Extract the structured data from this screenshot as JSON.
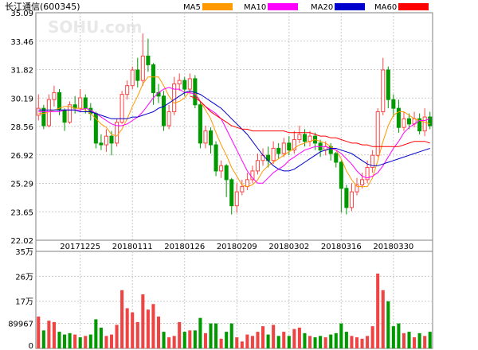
{
  "title": "长江通信(600345)",
  "watermark": "SOHU.com",
  "legend": [
    {
      "label": "MA5",
      "color": "#ff9900"
    },
    {
      "label": "MA10",
      "color": "#ff00ff"
    },
    {
      "label": "MA20",
      "color": "#0000cc"
    },
    {
      "label": "MA60",
      "color": "#ff0000"
    }
  ],
  "colors": {
    "up": "#ff4444",
    "down": "#009900",
    "volume_up": "#ee4444",
    "volume_down": "#009900"
  },
  "chart_data": [
    {
      "type": "candlestick",
      "ylim": [
        22.02,
        35.09
      ],
      "y_ticks": [
        "35.09",
        "33.46",
        "31.82",
        "30.19",
        "28.56",
        "26.92",
        "25.29",
        "23.65",
        "22.02"
      ],
      "x_tick_labels": [
        {
          "index": 8,
          "label": "20171225"
        },
        {
          "index": 18,
          "label": "20180111"
        },
        {
          "index": 28,
          "label": "20180126"
        },
        {
          "index": 38,
          "label": "20180209"
        },
        {
          "index": 48,
          "label": "20180302"
        },
        {
          "index": 58,
          "label": "20180316"
        },
        {
          "index": 68,
          "label": "20180330"
        }
      ],
      "grid": true,
      "candles": [
        [
          29.2,
          29.6,
          30.4,
          28.9
        ],
        [
          29.6,
          28.6,
          29.8,
          28.4
        ],
        [
          28.6,
          30.1,
          30.4,
          28.5
        ],
        [
          30.1,
          30.5,
          30.9,
          29.7
        ],
        [
          30.5,
          29.5,
          30.7,
          29.2
        ],
        [
          29.5,
          28.8,
          29.6,
          28.3
        ],
        [
          28.8,
          29.8,
          30.0,
          28.7
        ],
        [
          29.8,
          29.6,
          30.3,
          29.3
        ],
        [
          29.6,
          30.2,
          30.7,
          29.4
        ],
        [
          30.2,
          29.6,
          30.4,
          29.3
        ],
        [
          29.6,
          29.3,
          29.9,
          28.9
        ],
        [
          29.3,
          27.6,
          29.4,
          27.3
        ],
        [
          27.6,
          27.5,
          28.1,
          27.2
        ],
        [
          27.5,
          28.0,
          28.4,
          27.1
        ],
        [
          28.0,
          27.6,
          28.3,
          26.9
        ],
        [
          27.6,
          28.8,
          29.0,
          27.4
        ],
        [
          28.8,
          30.4,
          30.6,
          28.7
        ],
        [
          30.4,
          30.9,
          31.2,
          30.1
        ],
        [
          30.9,
          31.8,
          32.0,
          30.7
        ],
        [
          31.8,
          31.2,
          32.5,
          30.8
        ],
        [
          31.2,
          32.6,
          33.9,
          30.9
        ],
        [
          32.6,
          32.1,
          33.6,
          31.7
        ],
        [
          32.1,
          30.5,
          32.2,
          29.8
        ],
        [
          30.5,
          30.3,
          31.0,
          29.9
        ],
        [
          30.3,
          28.6,
          30.6,
          28.3
        ],
        [
          28.6,
          29.4,
          29.8,
          28.4
        ],
        [
          29.4,
          31.0,
          31.4,
          29.2
        ],
        [
          31.0,
          31.2,
          31.6,
          30.6
        ],
        [
          31.2,
          30.7,
          31.4,
          30.3
        ],
        [
          30.7,
          31.3,
          31.6,
          30.4
        ],
        [
          31.3,
          29.8,
          31.5,
          29.6
        ],
        [
          29.8,
          27.6,
          30.0,
          27.3
        ],
        [
          27.6,
          28.3,
          28.6,
          27.3
        ],
        [
          28.3,
          27.5,
          28.5,
          27.0
        ],
        [
          27.5,
          26.0,
          27.7,
          25.7
        ],
        [
          26.0,
          26.3,
          26.6,
          25.6
        ],
        [
          26.3,
          25.5,
          26.4,
          24.5
        ],
        [
          25.5,
          24.0,
          25.6,
          23.5
        ],
        [
          24.0,
          24.8,
          25.3,
          23.6
        ],
        [
          24.8,
          25.1,
          25.5,
          24.6
        ],
        [
          25.1,
          25.5,
          25.9,
          24.9
        ],
        [
          25.5,
          26.0,
          26.3,
          25.3
        ],
        [
          26.0,
          26.6,
          27.0,
          25.8
        ],
        [
          26.6,
          26.9,
          27.3,
          26.3
        ],
        [
          26.9,
          26.6,
          27.4,
          26.2
        ],
        [
          26.6,
          27.3,
          27.7,
          26.4
        ],
        [
          27.3,
          27.0,
          27.6,
          26.7
        ],
        [
          27.0,
          27.6,
          27.9,
          26.8
        ],
        [
          27.6,
          27.2,
          28.0,
          26.9
        ],
        [
          27.2,
          27.8,
          28.3,
          27.0
        ],
        [
          27.8,
          28.1,
          28.6,
          27.6
        ],
        [
          28.1,
          27.7,
          28.4,
          27.4
        ],
        [
          27.7,
          28.0,
          28.3,
          27.4
        ],
        [
          28.0,
          27.6,
          28.2,
          27.2
        ],
        [
          27.6,
          27.2,
          27.8,
          26.8
        ],
        [
          27.2,
          27.4,
          27.7,
          26.9
        ],
        [
          27.4,
          27.0,
          27.6,
          26.6
        ],
        [
          27.0,
          26.5,
          27.1,
          26.2
        ],
        [
          26.5,
          25.0,
          26.6,
          23.6
        ],
        [
          25.0,
          23.9,
          25.2,
          23.5
        ],
        [
          23.9,
          24.8,
          25.3,
          23.7
        ],
        [
          24.8,
          25.2,
          25.6,
          24.6
        ],
        [
          25.2,
          25.5,
          25.9,
          25.0
        ],
        [
          25.5,
          26.2,
          26.6,
          25.3
        ],
        [
          26.2,
          26.9,
          27.2,
          25.9
        ],
        [
          26.9,
          29.4,
          29.6,
          26.8
        ],
        [
          29.4,
          31.8,
          32.5,
          29.2
        ],
        [
          31.8,
          30.1,
          32.0,
          29.6
        ],
        [
          30.1,
          29.6,
          30.4,
          29.1
        ],
        [
          29.6,
          28.5,
          30.1,
          28.2
        ],
        [
          28.5,
          29.0,
          29.4,
          28.3
        ],
        [
          29.0,
          28.7,
          29.3,
          28.4
        ],
        [
          28.7,
          29.0,
          29.4,
          28.5
        ],
        [
          29.0,
          28.3,
          29.3,
          28.1
        ],
        [
          28.3,
          29.1,
          29.6,
          28.0
        ],
        [
          29.1,
          28.6,
          29.4,
          28.4
        ]
      ],
      "ma_series": [
        {
          "name": "MA5",
          "values": [
            29.3,
            29.3,
            29.4,
            29.5,
            29.6,
            29.7,
            29.7,
            29.6,
            29.6,
            29.5,
            29.3,
            29.0,
            28.7,
            28.5,
            28.1,
            28.0,
            28.4,
            29.0,
            29.7,
            30.3,
            31.0,
            31.4,
            31.4,
            31.4,
            30.9,
            30.3,
            29.9,
            30.0,
            30.2,
            30.6,
            30.5,
            30.0,
            29.5,
            29.0,
            28.2,
            27.5,
            26.9,
            26.2,
            25.7,
            25.2,
            25.1,
            25.2,
            25.5,
            26.0,
            26.3,
            26.5,
            26.7,
            26.9,
            27.1,
            27.3,
            27.5,
            27.6,
            27.7,
            27.8,
            27.7,
            27.6,
            27.4,
            27.2,
            26.7,
            26.0,
            25.5,
            25.1,
            25.1,
            25.1,
            25.6,
            26.6,
            27.7,
            28.6,
            29.2,
            29.4,
            29.4,
            29.2,
            29.0,
            28.9,
            28.8,
            28.7
          ]
        },
        {
          "name": "MA10",
          "values": [
            29.4,
            29.4,
            29.4,
            29.4,
            29.4,
            29.5,
            29.5,
            29.5,
            29.5,
            29.6,
            29.5,
            29.3,
            29.1,
            28.9,
            28.7,
            28.6,
            28.6,
            28.7,
            28.9,
            29.1,
            29.4,
            29.8,
            30.2,
            30.5,
            30.7,
            30.8,
            30.7,
            30.7,
            30.5,
            30.5,
            30.4,
            30.0,
            29.7,
            29.5,
            29.3,
            29.0,
            28.4,
            27.8,
            27.2,
            26.6,
            26.0,
            25.6,
            25.3,
            25.3,
            25.6,
            25.9,
            26.1,
            26.3,
            26.6,
            26.8,
            27.0,
            27.2,
            27.3,
            27.4,
            27.4,
            27.4,
            27.3,
            27.2,
            27.0,
            26.7,
            26.4,
            26.0,
            25.7,
            25.6,
            25.7,
            25.9,
            26.3,
            26.8,
            27.3,
            27.7,
            28.2,
            28.5,
            28.7,
            28.9,
            28.9,
            29.0
          ]
        },
        {
          "name": "MA20",
          "values": [
            29.5,
            29.5,
            29.5,
            29.5,
            29.5,
            29.5,
            29.5,
            29.5,
            29.4,
            29.4,
            29.4,
            29.3,
            29.2,
            29.1,
            29.0,
            29.0,
            29.0,
            29.0,
            29.1,
            29.1,
            29.2,
            29.3,
            29.4,
            29.6,
            29.7,
            29.9,
            30.1,
            30.3,
            30.5,
            30.6,
            30.5,
            30.4,
            30.2,
            30.0,
            29.8,
            29.6,
            29.3,
            29.0,
            28.7,
            28.4,
            28.1,
            27.7,
            27.3,
            26.9,
            26.6,
            26.3,
            26.1,
            26.0,
            26.0,
            26.1,
            26.3,
            26.5,
            26.7,
            26.9,
            27.1,
            27.2,
            27.3,
            27.3,
            27.2,
            27.1,
            27.0,
            26.8,
            26.6,
            26.4,
            26.3,
            26.3,
            26.4,
            26.5,
            26.6,
            26.7,
            26.8,
            26.9,
            27.0,
            27.1,
            27.2,
            27.3
          ]
        },
        {
          "name": "MA60",
          "values": [
            null,
            null,
            null,
            null,
            null,
            null,
            null,
            null,
            null,
            null,
            null,
            null,
            null,
            null,
            null,
            null,
            null,
            null,
            null,
            null,
            null,
            null,
            null,
            null,
            null,
            null,
            null,
            null,
            null,
            30.3,
            30.2,
            30.0,
            29.7,
            29.4,
            29.2,
            29.0,
            28.8,
            28.6,
            28.5,
            28.4,
            28.4,
            28.3,
            28.3,
            28.3,
            28.3,
            28.3,
            28.3,
            28.3,
            28.2,
            28.2,
            28.2,
            28.2,
            28.2,
            28.1,
            28.0,
            28.0,
            27.9,
            27.9,
            27.8,
            27.7,
            27.6,
            27.6,
            27.5,
            27.5,
            27.4,
            27.4,
            27.4,
            27.4,
            27.4,
            27.4,
            27.5,
            27.6,
            27.7,
            27.7,
            27.7,
            27.6
          ]
        }
      ]
    },
    {
      "type": "bar",
      "ylabel_ticks": [
        "35万",
        "26万",
        "17万",
        "89967",
        "0"
      ],
      "ylim": [
        0,
        350000
      ],
      "volumes": [
        [
          115000,
          1
        ],
        [
          65000,
          0
        ],
        [
          100000,
          1
        ],
        [
          95000,
          1
        ],
        [
          60000,
          0
        ],
        [
          50000,
          0
        ],
        [
          55000,
          0
        ],
        [
          50000,
          1
        ],
        [
          40000,
          0
        ],
        [
          45000,
          1
        ],
        [
          50000,
          0
        ],
        [
          105000,
          0
        ],
        [
          75000,
          0
        ],
        [
          45000,
          1
        ],
        [
          50000,
          1
        ],
        [
          85000,
          1
        ],
        [
          210000,
          1
        ],
        [
          145000,
          1
        ],
        [
          130000,
          1
        ],
        [
          95000,
          1
        ],
        [
          195000,
          1
        ],
        [
          140000,
          1
        ],
        [
          160000,
          1
        ],
        [
          115000,
          1
        ],
        [
          60000,
          0
        ],
        [
          40000,
          1
        ],
        [
          45000,
          1
        ],
        [
          95000,
          1
        ],
        [
          60000,
          0
        ],
        [
          65000,
          1
        ],
        [
          65000,
          0
        ],
        [
          110000,
          0
        ],
        [
          55000,
          1
        ],
        [
          90000,
          0
        ],
        [
          90000,
          0
        ],
        [
          35000,
          1
        ],
        [
          60000,
          0
        ],
        [
          90000,
          0
        ],
        [
          40000,
          1
        ],
        [
          25000,
          1
        ],
        [
          50000,
          1
        ],
        [
          45000,
          1
        ],
        [
          60000,
          1
        ],
        [
          80000,
          1
        ],
        [
          50000,
          0
        ],
        [
          85000,
          1
        ],
        [
          45000,
          0
        ],
        [
          60000,
          1
        ],
        [
          45000,
          0
        ],
        [
          70000,
          1
        ],
        [
          75000,
          1
        ],
        [
          55000,
          0
        ],
        [
          45000,
          1
        ],
        [
          40000,
          0
        ],
        [
          45000,
          0
        ],
        [
          40000,
          1
        ],
        [
          50000,
          0
        ],
        [
          55000,
          0
        ],
        [
          90000,
          0
        ],
        [
          60000,
          0
        ],
        [
          45000,
          1
        ],
        [
          40000,
          1
        ],
        [
          35000,
          1
        ],
        [
          45000,
          1
        ],
        [
          80000,
          1
        ],
        [
          270000,
          1
        ],
        [
          210000,
          1
        ],
        [
          170000,
          0
        ],
        [
          80000,
          0
        ],
        [
          90000,
          0
        ],
        [
          55000,
          1
        ],
        [
          60000,
          0
        ],
        [
          40000,
          1
        ],
        [
          55000,
          0
        ],
        [
          45000,
          1
        ],
        [
          60000,
          0
        ]
      ]
    }
  ]
}
